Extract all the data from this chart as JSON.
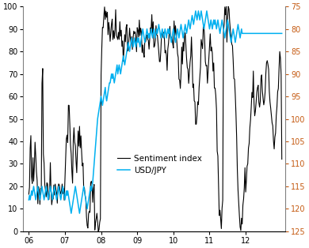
{
  "left_ylim": [
    0,
    100
  ],
  "right_ylim": [
    125,
    75
  ],
  "left_yticks": [
    0,
    10,
    20,
    30,
    40,
    50,
    60,
    70,
    80,
    90,
    100
  ],
  "right_yticks": [
    75,
    80,
    85,
    90,
    95,
    100,
    105,
    110,
    115,
    120,
    125
  ],
  "xtick_labels": [
    "06",
    "07",
    "08",
    "09",
    "10",
    "11",
    "12"
  ],
  "xtick_positions": [
    2006,
    2007,
    2008,
    2009,
    2010,
    2011,
    2012
  ],
  "xlim": [
    2005.85,
    2013.1
  ],
  "sentiment_color": "#000000",
  "usdjpy_color": "#00b0f0",
  "right_axis_color": "#c55a11",
  "legend_entries": [
    "Sentiment index",
    "USD/JPY"
  ],
  "legend_fontsize": 7.5,
  "background_color": "#ffffff",
  "figsize": [
    3.9,
    3.14
  ],
  "dpi": 100
}
